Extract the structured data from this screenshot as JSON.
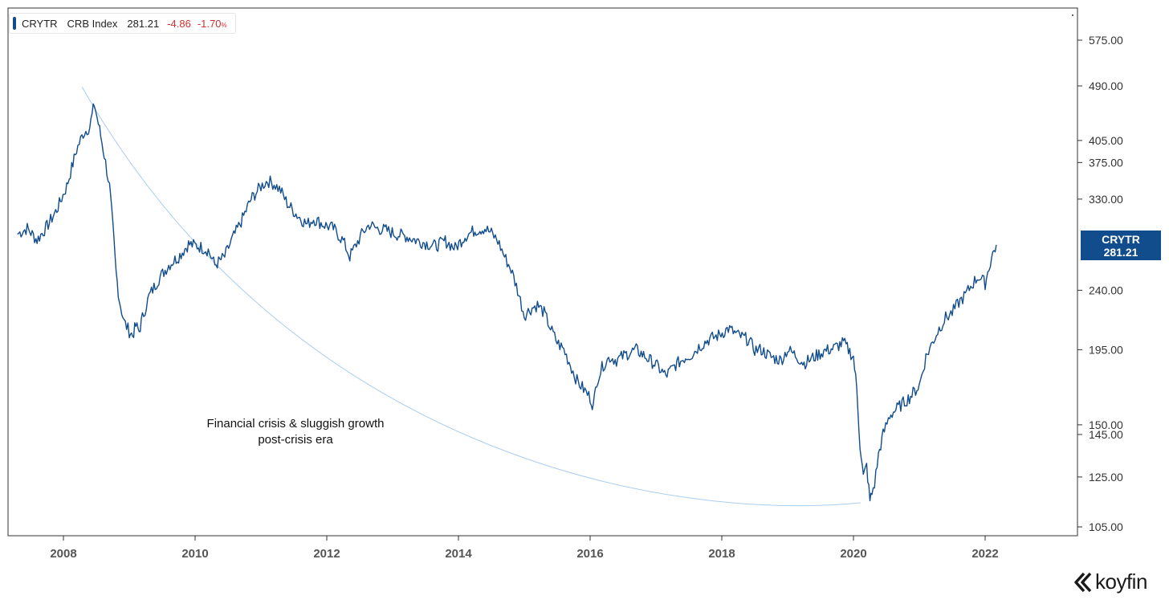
{
  "legend": {
    "ticker": "CRYTR",
    "name": "CRB Index",
    "last": "281.21",
    "change": "-4.86",
    "change_pct": "-1.70",
    "change_pct_unit": "%"
  },
  "last_tag": {
    "ticker": "CRYTR",
    "value": "281.21"
  },
  "annotation": {
    "line1": "Financial crisis & sluggish growth",
    "line2": "post-crisis era"
  },
  "logo": {
    "text": "koyfin",
    "icon": "koyfin-logo-icon"
  },
  "colors": {
    "series": "#114c8c",
    "up": "#1f7a3a",
    "down": "#d32f2f",
    "axis": "#333333",
    "curve": "#a9cdf2"
  },
  "chart_data": {
    "type": "line",
    "y_scale": "log",
    "ylim": [
      100,
      615
    ],
    "xlim": [
      2007.3,
      2023.5
    ],
    "x_ticks": [
      "2008",
      "2010",
      "2012",
      "2014",
      "2016",
      "2018",
      "2020",
      "2022"
    ],
    "y_ticks": [
      "575.00",
      "490.00",
      "405.00",
      "375.00",
      "330.00",
      "240.00",
      "195.00",
      "150.00",
      "145.00",
      "125.00",
      "105.00"
    ],
    "grid": false,
    "legend_position": "top-left",
    "series": [
      {
        "name": "CRB Index",
        "x": [
          2007.3,
          2007.45,
          2007.6,
          2007.75,
          2007.9,
          2008.05,
          2008.2,
          2008.3,
          2008.4,
          2008.47,
          2008.55,
          2008.62,
          2008.7,
          2008.75,
          2008.8,
          2008.85,
          2008.92,
          2009.0,
          2009.05,
          2009.1,
          2009.15,
          2009.2,
          2009.3,
          2009.45,
          2009.6,
          2009.75,
          2009.9,
          2010.05,
          2010.2,
          2010.3,
          2010.45,
          2010.55,
          2010.7,
          2010.85,
          2011.0,
          2011.1,
          2011.2,
          2011.3,
          2011.4,
          2011.55,
          2011.7,
          2011.8,
          2011.95,
          2012.1,
          2012.25,
          2012.35,
          2012.45,
          2012.55,
          2012.65,
          2012.75,
          2012.9,
          2013.05,
          2013.2,
          2013.35,
          2013.5,
          2013.65,
          2013.8,
          2013.95,
          2014.1,
          2014.25,
          2014.4,
          2014.5,
          2014.6,
          2014.7,
          2014.8,
          2014.9,
          2015.0,
          2015.1,
          2015.2,
          2015.3,
          2015.4,
          2015.5,
          2015.6,
          2015.7,
          2015.8,
          2015.9,
          2016.0,
          2016.05,
          2016.1,
          2016.2,
          2016.3,
          2016.4,
          2016.55,
          2016.7,
          2016.85,
          2017.0,
          2017.15,
          2017.3,
          2017.45,
          2017.55,
          2017.65,
          2017.8,
          2017.95,
          2018.1,
          2018.25,
          2018.4,
          2018.5,
          2018.6,
          2018.75,
          2018.9,
          2019.0,
          2019.1,
          2019.25,
          2019.4,
          2019.55,
          2019.7,
          2019.85,
          2020.0,
          2020.05,
          2020.1,
          2020.15,
          2020.2,
          2020.25,
          2020.28,
          2020.32,
          2020.38,
          2020.45,
          2020.55,
          2020.7,
          2020.85,
          2021.0,
          2021.1,
          2021.2,
          2021.3,
          2021.4,
          2021.5,
          2021.6,
          2021.7,
          2021.8,
          2021.9,
          2022.0,
          2022.1,
          2022.17
        ],
        "y": [
          292,
          298,
          286,
          300,
          318,
          345,
          392,
          415,
          425,
          460,
          420,
          385,
          345,
          300,
          255,
          232,
          215,
          208,
          205,
          212,
          208,
          218,
          235,
          250,
          262,
          270,
          282,
          280,
          276,
          262,
          270,
          285,
          305,
          330,
          345,
          352,
          348,
          340,
          325,
          312,
          302,
          308,
          302,
          298,
          285,
          270,
          282,
          294,
          302,
          298,
          296,
          292,
          290,
          286,
          283,
          280,
          285,
          278,
          290,
          296,
          298,
          293,
          285,
          270,
          258,
          240,
          220,
          225,
          228,
          222,
          210,
          200,
          195,
          185,
          175,
          170,
          165,
          160,
          175,
          185,
          190,
          188,
          192,
          195,
          190,
          185,
          178,
          185,
          190,
          192,
          197,
          202,
          205,
          210,
          205,
          202,
          195,
          195,
          190,
          188,
          195,
          192,
          186,
          190,
          194,
          196,
          200,
          190,
          170,
          140,
          125,
          130,
          115,
          118,
          122,
          135,
          145,
          155,
          160,
          165,
          172,
          190,
          200,
          210,
          218,
          222,
          230,
          236,
          245,
          252,
          246,
          270,
          281.21
        ]
      }
    ]
  }
}
